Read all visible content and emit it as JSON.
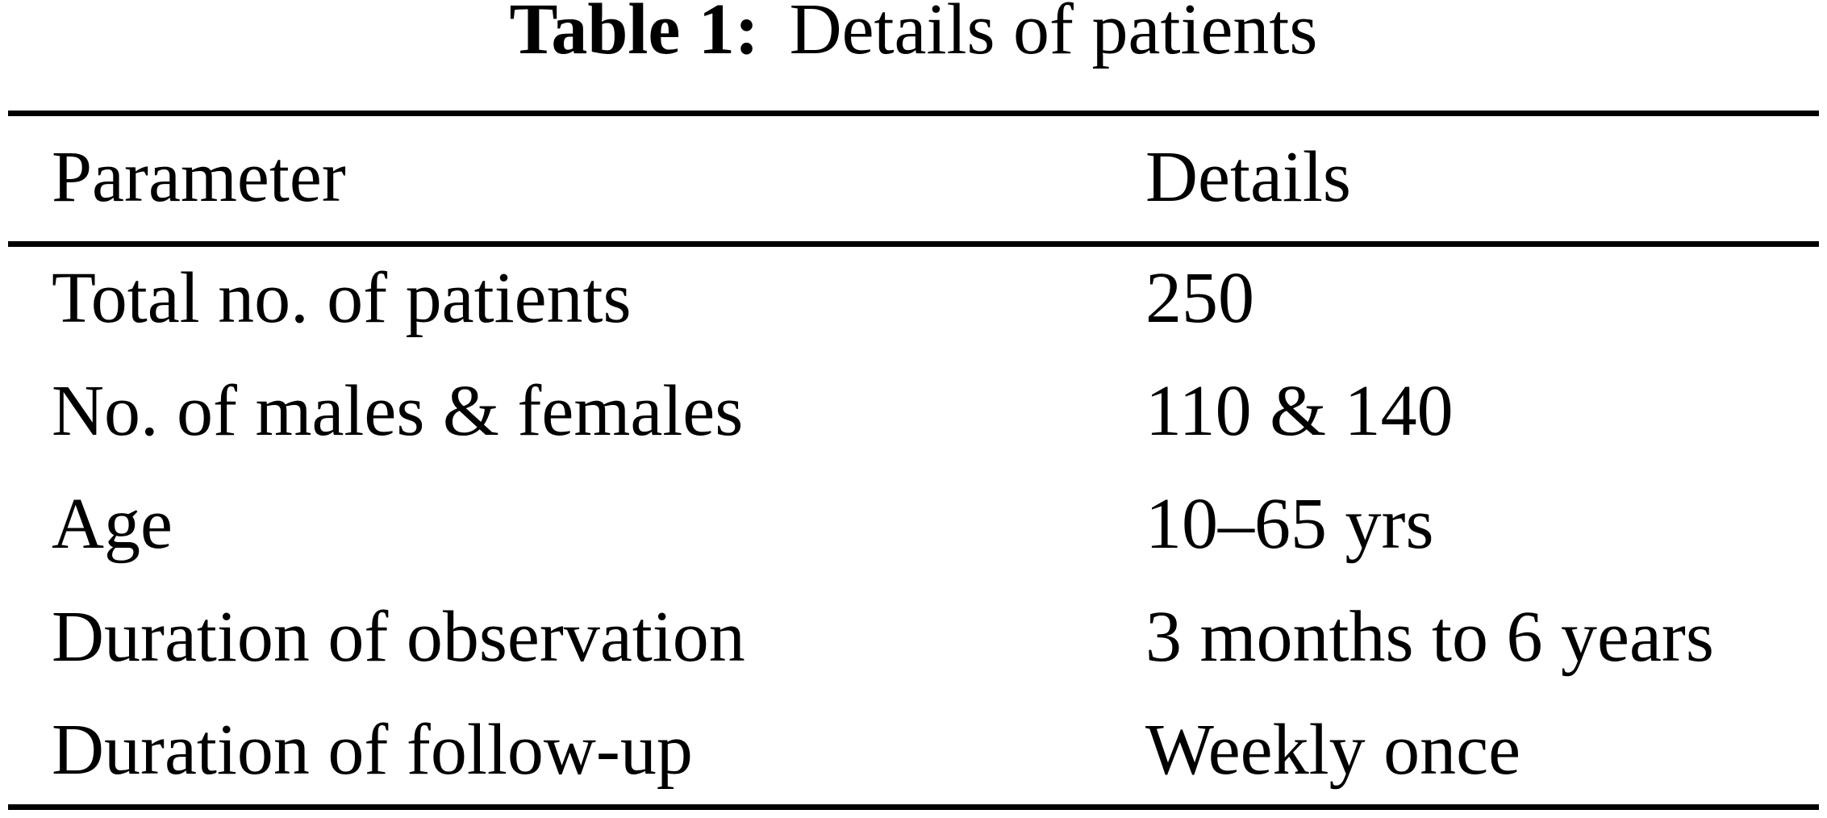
{
  "caption": {
    "label": "Table 1:",
    "text": "Details of patients"
  },
  "table": {
    "headers": [
      "Parameter",
      "Details"
    ],
    "rows": [
      {
        "parameter": "Total no. of patients",
        "details": "250"
      },
      {
        "parameter": "No. of males & females",
        "details": "110 & 140"
      },
      {
        "parameter": "Age",
        "details": "10–65 yrs"
      },
      {
        "parameter": "Duration of observation",
        "details": "3 months to 6 years"
      },
      {
        "parameter": "Duration of follow-up",
        "details": "Weekly once"
      }
    ]
  },
  "colors": {
    "text": "#000000",
    "background": "#ffffff",
    "rule": "#000000"
  }
}
